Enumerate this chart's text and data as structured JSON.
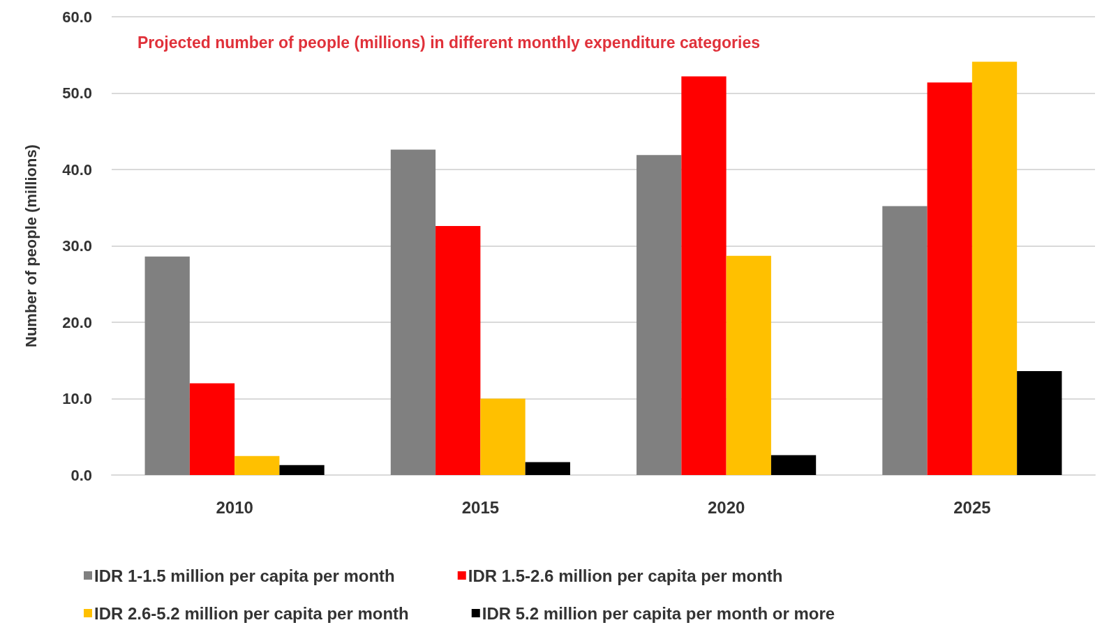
{
  "chart_data": {
    "type": "bar",
    "title": "Projected number of people (millions) in different monthly expenditure categories",
    "ylabel": "Number of people (millions)",
    "categories": [
      "2010",
      "2015",
      "2020",
      "2025"
    ],
    "series": [
      {
        "name": "IDR 1-1.5 million per capita per month",
        "color": "#808080",
        "values": [
          28.6,
          42.6,
          41.9,
          35.2
        ]
      },
      {
        "name": "IDR 1.5-2.6 million per capita per month",
        "color": "#ff0000",
        "values": [
          12.0,
          32.6,
          52.2,
          51.4
        ]
      },
      {
        "name": "IDR 2.6-5.2 million per capita per month",
        "color": "#ffc000",
        "values": [
          2.5,
          10.0,
          28.7,
          54.1
        ]
      },
      {
        "name": "IDR 5.2 million per capita per month or more",
        "color": "#000000",
        "values": [
          1.3,
          1.7,
          2.6,
          13.6
        ]
      }
    ],
    "ylim": [
      0,
      60
    ],
    "yticks": [
      {
        "value": 0,
        "label": "0.0"
      },
      {
        "value": 10,
        "label": "10.0"
      },
      {
        "value": 20,
        "label": "20.0"
      },
      {
        "value": 30,
        "label": "30.0"
      },
      {
        "value": 40,
        "label": "40.0"
      },
      {
        "value": 50,
        "label": "50.0"
      },
      {
        "value": 60,
        "label": "60.0"
      }
    ],
    "grid": "y",
    "legend": "bottom"
  }
}
